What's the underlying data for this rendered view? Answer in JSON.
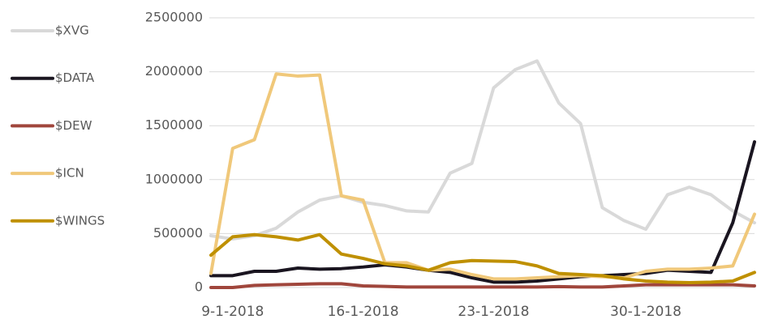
{
  "chart_data": {
    "type": "line",
    "categories": [
      null,
      "9-1-2018",
      null,
      null,
      null,
      null,
      null,
      "16-1-2018",
      null,
      null,
      null,
      null,
      null,
      "23-1-2018",
      null,
      null,
      null,
      null,
      null,
      null,
      "30-1-2018",
      null,
      null,
      null,
      null,
      null
    ],
    "series": [
      {
        "name": "$XVG",
        "color": "#d9d9d9",
        "values": [
          480000,
          450000,
          480000,
          550000,
          700000,
          810000,
          850000,
          790000,
          760000,
          710000,
          700000,
          1060000,
          1150000,
          1850000,
          2020000,
          2100000,
          1710000,
          1520000,
          740000,
          620000,
          540000,
          860000,
          930000,
          860000,
          710000,
          600000
        ]
      },
      {
        "name": "$DATA",
        "color": "#1a1520",
        "values": [
          110000,
          110000,
          150000,
          150000,
          180000,
          170000,
          175000,
          190000,
          210000,
          190000,
          160000,
          140000,
          90000,
          50000,
          50000,
          60000,
          80000,
          100000,
          110000,
          120000,
          130000,
          160000,
          150000,
          140000,
          600000,
          1350000
        ]
      },
      {
        "name": "$DEW",
        "color": "#a0463c",
        "values": [
          0,
          0,
          20000,
          25000,
          30000,
          35000,
          35000,
          15000,
          10000,
          5000,
          5000,
          5000,
          5000,
          5000,
          5000,
          5000,
          8000,
          5000,
          5000,
          15000,
          25000,
          25000,
          25000,
          25000,
          25000,
          15000
        ]
      },
      {
        "name": "$ICN",
        "color": "#f0c87a",
        "values": [
          130000,
          1290000,
          1370000,
          1980000,
          1960000,
          1970000,
          850000,
          810000,
          230000,
          230000,
          160000,
          170000,
          120000,
          80000,
          80000,
          90000,
          100000,
          110000,
          100000,
          90000,
          150000,
          170000,
          170000,
          180000,
          200000,
          680000
        ]
      },
      {
        "name": "$WINGS",
        "color": "#bf9000",
        "values": [
          300000,
          470000,
          490000,
          470000,
          440000,
          490000,
          310000,
          270000,
          220000,
          200000,
          160000,
          230000,
          250000,
          245000,
          240000,
          200000,
          130000,
          120000,
          110000,
          80000,
          60000,
          50000,
          45000,
          50000,
          60000,
          140000
        ]
      }
    ],
    "ylim": [
      0,
      2500000
    ],
    "yticks": [
      0,
      500000,
      1000000,
      1500000,
      2000000,
      2500000
    ],
    "grid": true,
    "legend": "left"
  }
}
